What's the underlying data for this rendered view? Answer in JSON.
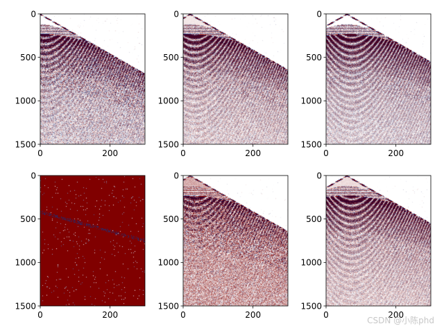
{
  "figure": {
    "watermark": "CSDN @小陈phd",
    "colors": {
      "background": "#ffffff",
      "axis": "#000000",
      "neg": "#00004c",
      "zero": "#ffffff",
      "pos": "#800000"
    }
  },
  "chart_data": [
    {
      "id": "p1",
      "type": "heatmap",
      "title": "",
      "xlim": [
        0,
        300
      ],
      "ylim": [
        1500,
        0
      ],
      "xticks": [
        0,
        200
      ],
      "yticks": [
        0,
        500,
        1000,
        1500
      ],
      "xtick_labels": [
        "0",
        "200"
      ],
      "ytick_labels": [
        "0",
        "500",
        "1000",
        "1500"
      ],
      "colormap": "seismic",
      "apex_trace": 0,
      "bias": 0.0,
      "noise": 0.5,
      "saturated": false
    },
    {
      "id": "p2",
      "type": "heatmap",
      "title": "",
      "xlim": [
        0,
        300
      ],
      "ylim": [
        1500,
        0
      ],
      "xticks": [
        0,
        200
      ],
      "yticks": [
        0,
        500,
        1000,
        1500
      ],
      "xtick_labels": [
        "0",
        "200"
      ],
      "ytick_labels": [
        "0",
        "500",
        "1000",
        "1500"
      ],
      "colormap": "seismic",
      "apex_trace": 20,
      "bias": 0.05,
      "noise": 0.35,
      "saturated": false
    },
    {
      "id": "p3",
      "type": "heatmap",
      "title": "",
      "xlim": [
        0,
        300
      ],
      "ylim": [
        1500,
        0
      ],
      "xticks": [
        0,
        200
      ],
      "yticks": [
        0,
        500,
        1000,
        1500
      ],
      "xtick_labels": [
        "0",
        "200"
      ],
      "ytick_labels": [
        "0",
        "500",
        "1000",
        "1500"
      ],
      "colormap": "seismic",
      "apex_trace": 60,
      "bias": 0.0,
      "noise": 0.3,
      "saturated": false
    },
    {
      "id": "p4",
      "type": "heatmap",
      "title": "",
      "xlim": [
        0,
        300
      ],
      "ylim": [
        1500,
        0
      ],
      "xticks": [
        0,
        200
      ],
      "yticks": [
        0,
        500,
        1000,
        1500
      ],
      "xtick_labels": [
        "0",
        "200"
      ],
      "ytick_labels": [
        "0",
        "500",
        "1000",
        "1500"
      ],
      "colormap": "seismic",
      "apex_trace": 0,
      "bias": 1.0,
      "noise": 0.0,
      "saturated": true
    },
    {
      "id": "p5",
      "type": "heatmap",
      "title": "",
      "xlim": [
        0,
        300
      ],
      "ylim": [
        1500,
        0
      ],
      "xticks": [
        0,
        200
      ],
      "yticks": [
        0,
        500,
        1000,
        1500
      ],
      "xtick_labels": [
        "0",
        "200"
      ],
      "ytick_labels": [
        "0",
        "500",
        "1000",
        "1500"
      ],
      "colormap": "seismic",
      "apex_trace": 20,
      "bias": 0.25,
      "noise": 0.6,
      "saturated": false
    },
    {
      "id": "p6",
      "type": "heatmap",
      "title": "",
      "xlim": [
        0,
        300
      ],
      "ylim": [
        1500,
        0
      ],
      "xticks": [
        0,
        200
      ],
      "yticks": [
        0,
        500,
        1000,
        1500
      ],
      "xtick_labels": [
        "0",
        "200"
      ],
      "ytick_labels": [
        "0",
        "500",
        "1000",
        "1500"
      ],
      "colormap": "seismic",
      "apex_trace": 60,
      "bias": 0.08,
      "noise": 0.3,
      "saturated": false
    }
  ]
}
